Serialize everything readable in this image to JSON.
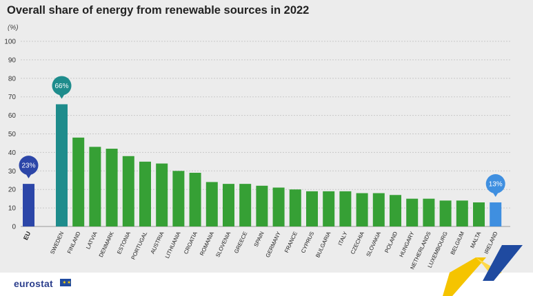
{
  "title": "Overall share of energy from renewable sources in 2022",
  "unit": "(%)",
  "logo": "eurostat",
  "colors": {
    "eu": "#2c46a8",
    "highlight_max": "#1e8c8c",
    "countries": "#36a035",
    "highlight_min": "#3f8fe0",
    "grid": "#c8c8c8"
  },
  "chart_data": {
    "type": "bar",
    "ylim": [
      0,
      100
    ],
    "yticks": [
      0,
      10,
      20,
      30,
      40,
      50,
      60,
      70,
      80,
      90,
      100
    ],
    "grid": true,
    "categories": [
      "EU",
      "SWEDEN",
      "FINLAND",
      "LATVIA",
      "DENMARK",
      "ESTONIA",
      "PORTUGAL",
      "AUSTRIA",
      "LITHUANIA",
      "CROATIA",
      "ROMANIA",
      "SLOVENIA",
      "GREECE",
      "SPAIN",
      "GERMANY",
      "FRANCE",
      "CYPRUS",
      "BULGARIA",
      "ITALY",
      "CZECHIA",
      "SLOVAKIA",
      "POLAND",
      "HUNGARY",
      "NETHERLANDS",
      "LUXEMBOURG",
      "BELGIUM",
      "MALTA",
      "IRELAND"
    ],
    "values": [
      23,
      66,
      48,
      43,
      42,
      38,
      35,
      34,
      30,
      29,
      24,
      23,
      23,
      22,
      21,
      20,
      19,
      19,
      19,
      18,
      18,
      17,
      15,
      15,
      14,
      14,
      13,
      13
    ],
    "annotations": [
      {
        "category": "EU",
        "label": "23%"
      },
      {
        "category": "SWEDEN",
        "label": "66%"
      },
      {
        "category": "IRELAND",
        "label": "13%"
      }
    ]
  }
}
